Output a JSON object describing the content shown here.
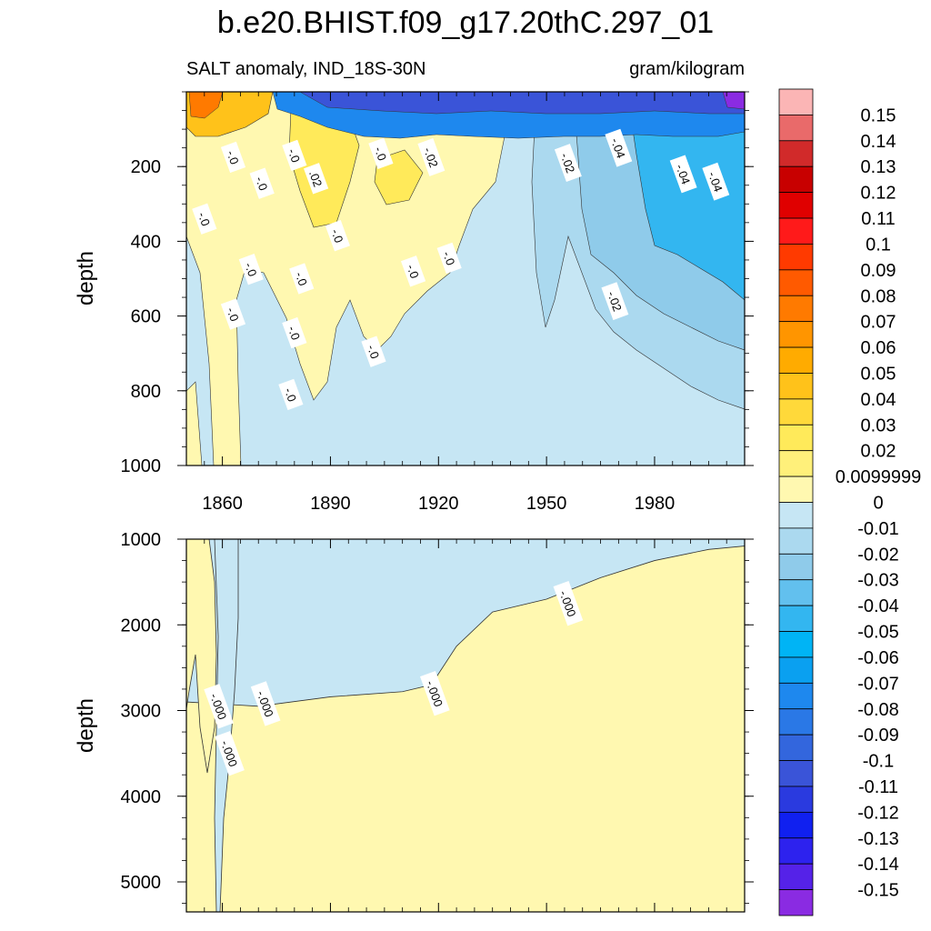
{
  "chart_data": {
    "type": "heatmap",
    "title": "b.e20.BHIST.f09_g17.20thC.297_01",
    "subtitle_left": "SALT anomaly, IND_18S-30N",
    "subtitle_right": "gram/kilogram",
    "xlim": [
      1850,
      2005
    ],
    "x_ticks": [
      1860,
      1890,
      1920,
      1950,
      1980
    ],
    "panels": [
      {
        "name": "upper",
        "ylabel": "depth",
        "ylim": [
          0,
          1000
        ],
        "y_ticks": [
          200,
          400,
          600,
          800,
          1000
        ],
        "contour_labels": [
          {
            "text": "-.0",
            "year": 1863,
            "depth": 175
          },
          {
            "text": "-.0",
            "year": 1855,
            "depth": 340
          },
          {
            "text": "-.0",
            "year": 1868,
            "depth": 475
          },
          {
            "text": "-.0",
            "year": 1863,
            "depth": 595
          },
          {
            "text": "-.0",
            "year": 1871,
            "depth": 245
          },
          {
            "text": "-.0",
            "year": 1880,
            "depth": 170
          },
          {
            "text": "-.0",
            "year": 1892,
            "depth": 385
          },
          {
            "text": "-.0",
            "year": 1904,
            "depth": 165
          },
          {
            "text": "-.02",
            "year": 1918,
            "depth": 175
          },
          {
            "text": ".02",
            "year": 1886,
            "depth": 232
          },
          {
            "text": "-.0",
            "year": 1882,
            "depth": 500
          },
          {
            "text": "-.0",
            "year": 1880,
            "depth": 645
          },
          {
            "text": "-.0",
            "year": 1902,
            "depth": 695
          },
          {
            "text": "-.0",
            "year": 1879,
            "depth": 810
          },
          {
            "text": "-.0",
            "year": 1913,
            "depth": 480
          },
          {
            "text": "-.0",
            "year": 1923,
            "depth": 445
          },
          {
            "text": "-.02",
            "year": 1956,
            "depth": 190
          },
          {
            "text": "-.04",
            "year": 1970,
            "depth": 150
          },
          {
            "text": "-.04",
            "year": 1988,
            "depth": 220
          },
          {
            "text": "-.04",
            "year": 1997,
            "depth": 240
          },
          {
            "text": "-.02",
            "year": 1969,
            "depth": 560
          }
        ]
      },
      {
        "name": "lower",
        "ylabel": "depth",
        "ylim": [
          1000,
          5350
        ],
        "y_ticks": [
          1000,
          2000,
          3000,
          4000,
          5000
        ],
        "boundary_depth_profile": [
          {
            "year": 1850,
            "depth": 2900
          },
          {
            "year": 1870,
            "depth": 2950
          },
          {
            "year": 1890,
            "depth": 2840
          },
          {
            "year": 1910,
            "depth": 2780
          },
          {
            "year": 1918,
            "depth": 2700
          },
          {
            "year": 1925,
            "depth": 2250
          },
          {
            "year": 1935,
            "depth": 1850
          },
          {
            "year": 1950,
            "depth": 1700
          },
          {
            "year": 1965,
            "depth": 1450
          },
          {
            "year": 1980,
            "depth": 1250
          },
          {
            "year": 1995,
            "depth": 1120
          },
          {
            "year": 2005,
            "depth": 1080
          }
        ],
        "contour_labels": [
          {
            "text": "-.000",
            "year": 1859,
            "depth": 2950
          },
          {
            "text": "-.000",
            "year": 1872,
            "depth": 2920
          },
          {
            "text": "-.000",
            "year": 1862,
            "depth": 3500
          },
          {
            "text": "-.000",
            "year": 1919,
            "depth": 2800
          },
          {
            "text": "-.000",
            "year": 1956,
            "depth": 1750
          }
        ]
      }
    ],
    "colorbar": {
      "labels": [
        "0.15",
        "0.14",
        "0.13",
        "0.12",
        "0.11",
        "0.1",
        "0.09",
        "0.08",
        "0.07",
        "0.06",
        "0.05",
        "0.04",
        "0.03",
        "0.02",
        "0.0099999",
        "0",
        "-0.01",
        "-0.02",
        "-0.03",
        "-0.04",
        "-0.05",
        "-0.06",
        "-0.07",
        "-0.08",
        "-0.09",
        "-0.1",
        "-0.11",
        "-0.12",
        "-0.13",
        "-0.14",
        "-0.15"
      ],
      "colors": [
        "#fbb5b5",
        "#e96a6a",
        "#d12a2a",
        "#c80000",
        "#e00000",
        "#ff1a1a",
        "#ff3a00",
        "#ff5a00",
        "#ff7a00",
        "#ff9500",
        "#ffab00",
        "#ffc21a",
        "#ffd93a",
        "#ffea5a",
        "#fff07a",
        "#fff8b0",
        "#c6e6f4",
        "#abd9ef",
        "#8fcbea",
        "#62c0ee",
        "#33b6f0",
        "#00b4f5",
        "#0aa0f0",
        "#1e88ee",
        "#2a78e6",
        "#3366dd",
        "#3a54d8",
        "#2a3adf",
        "#1020f0",
        "#2d22ee",
        "#5522e8",
        "#8a2be2"
      ]
    }
  }
}
